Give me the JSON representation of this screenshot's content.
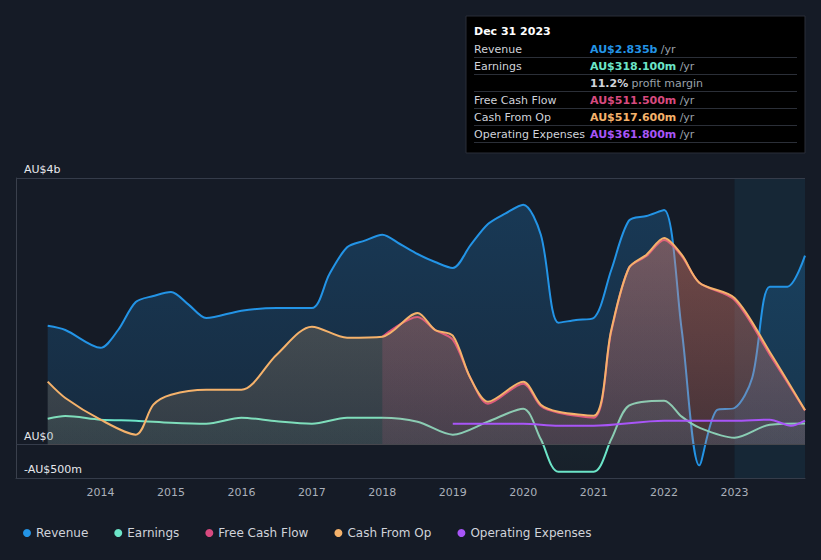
{
  "chart_data": {
    "type": "line",
    "xlim": [
      2012.8,
      2024.0
    ],
    "xticks": [
      2014,
      2015,
      2016,
      2017,
      2018,
      2019,
      2020,
      2021,
      2022,
      2023
    ],
    "ylim": [
      -500,
      4000
    ],
    "yticks": [
      {
        "value": -500,
        "label": "-AU$500m"
      },
      {
        "value": 0,
        "label": "AU$0"
      },
      {
        "value": 4000,
        "label": "AU$4b"
      }
    ],
    "grid": true,
    "legend": "bottom left",
    "shaded_x": [
      2023,
      2024
    ],
    "series": [
      {
        "name": "Revenue",
        "color": "#2394e6",
        "x": [
          2013.25,
          2013.5,
          2014,
          2014.25,
          2014.5,
          2014.75,
          2015,
          2015.25,
          2015.5,
          2016,
          2016.5,
          2017,
          2017.25,
          2017.5,
          2017.75,
          2018,
          2018.25,
          2018.5,
          2018.75,
          2019,
          2019.25,
          2019.5,
          2019.75,
          2020,
          2020.25,
          2020.5,
          2020.75,
          2021,
          2021.25,
          2021.5,
          2021.75,
          2022,
          2022.25,
          2022.5,
          2022.75,
          2023,
          2023.25,
          2023.5,
          2023.75,
          2024
        ],
        "values": [
          1783,
          1720,
          1453,
          1720,
          2140,
          2230,
          2290,
          2100,
          1900,
          2010,
          2050,
          2050,
          2560,
          2960,
          3060,
          3150,
          3010,
          2860,
          2740,
          2650,
          2990,
          3310,
          3470,
          3600,
          3150,
          1830,
          1870,
          1900,
          2620,
          3360,
          3430,
          3520,
          1720,
          -310,
          520,
          550,
          1000,
          2370,
          2370,
          2835
        ]
      },
      {
        "name": "Earnings",
        "color": "#6ce5c8",
        "x": [
          2013.25,
          2013.5,
          2014,
          2014.5,
          2015,
          2015.5,
          2016,
          2016.5,
          2017,
          2017.5,
          2018,
          2018.5,
          2019,
          2019.5,
          2020,
          2020.25,
          2020.5,
          2021,
          2021.25,
          2021.5,
          2022,
          2022.25,
          2022.5,
          2023,
          2023.5,
          2024
        ],
        "values": [
          390,
          430,
          375,
          360,
          330,
          315,
          405,
          350,
          315,
          405,
          405,
          345,
          150,
          345,
          540,
          80,
          -405,
          -405,
          80,
          585,
          660,
          420,
          255,
          105,
          300,
          318
        ]
      },
      {
        "name": "Free Cash Flow",
        "color": "#d84a7f",
        "x": [
          2018,
          2018.5,
          2018.75,
          2019,
          2019.25,
          2019.5,
          2020,
          2020.25,
          2020.5,
          2021,
          2021.25,
          2021.5,
          2021.75,
          2022,
          2022.25,
          2022.5,
          2023,
          2023.5,
          2024
        ],
        "values": [
          1620,
          1915,
          1720,
          1575,
          1000,
          615,
          915,
          580,
          480,
          405,
          1700,
          2650,
          2830,
          3070,
          2830,
          2430,
          2170,
          1350,
          512
        ]
      },
      {
        "name": "Cash From Op",
        "color": "#f5b26b",
        "x": [
          2013.25,
          2013.5,
          2014,
          2014.5,
          2014.75,
          2015,
          2015.5,
          2016,
          2016.5,
          2017,
          2017.5,
          2018,
          2018.5,
          2018.75,
          2019,
          2019.25,
          2019.5,
          2020,
          2020.25,
          2020.5,
          2021,
          2021.25,
          2021.5,
          2021.75,
          2022,
          2022.25,
          2022.5,
          2023,
          2023.5,
          2024
        ],
        "values": [
          945,
          700,
          375,
          150,
          600,
          750,
          825,
          825,
          1350,
          1770,
          1605,
          1620,
          1975,
          1720,
          1635,
          1000,
          645,
          945,
          600,
          495,
          435,
          1720,
          2650,
          2850,
          3100,
          2850,
          2430,
          2200,
          1390,
          518
        ]
      },
      {
        "name": "Operating Expenses",
        "color": "#a855f7",
        "x": [
          2019,
          2020,
          2020.5,
          2021,
          2022,
          2023,
          2023.5,
          2023.8,
          2024
        ],
        "values": [
          315,
          315,
          285,
          285,
          360,
          360,
          375,
          285,
          362
        ]
      }
    ],
    "annotation": {
      "title": "Dec 31 2023",
      "rows": [
        {
          "label": "Revenue",
          "value": "AU$2.835b",
          "unit": "/yr"
        },
        {
          "label": "Earnings",
          "value": "AU$318.100m",
          "unit": "/yr"
        },
        {
          "value": "11.2%",
          "unit": "profit margin"
        },
        {
          "label": "Free Cash Flow",
          "value": "AU$511.500m",
          "unit": "/yr"
        },
        {
          "label": "Cash From Op",
          "value": "AU$517.600m",
          "unit": "/yr"
        },
        {
          "label": "Operating Expenses",
          "value": "AU$361.800m",
          "unit": "/yr"
        }
      ]
    }
  }
}
